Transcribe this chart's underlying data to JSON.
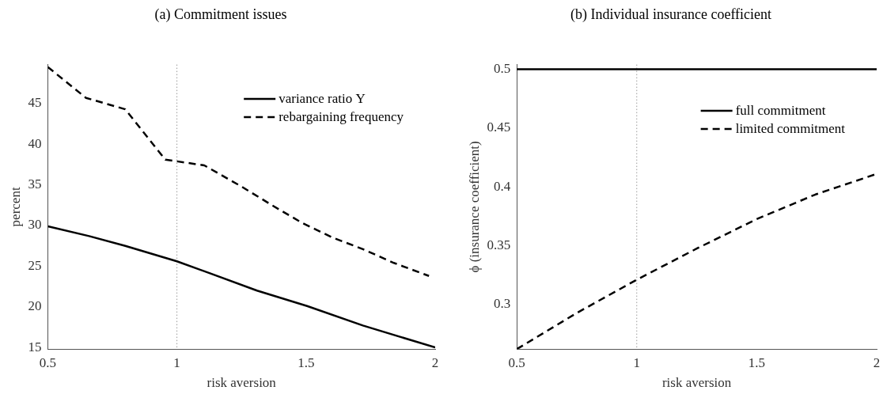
{
  "chart_data": [
    {
      "type": "line",
      "title": "(a) Commitment issues",
      "xlabel": "risk aversion",
      "ylabel": "percent",
      "xlim": [
        0.5,
        2
      ],
      "xticks": [
        0.5,
        1,
        1.5,
        2
      ],
      "ylim": [
        14.8,
        49.8
      ],
      "yticks": [
        15,
        20,
        25,
        30,
        35,
        40,
        45
      ],
      "grid": false,
      "legend": "top right",
      "marker": "none",
      "ref_lines": [
        {
          "axis": "x",
          "value": 1,
          "color": "#999999",
          "line_style": "dotted"
        }
      ],
      "series": [
        {
          "name": "variance ratio Υ",
          "color": "#000000",
          "line_style": "solid",
          "x": [
            0.5,
            0.66,
            0.8,
            1.0,
            1.13,
            1.31,
            1.504,
            1.72,
            2.0
          ],
          "values": [
            29.9,
            28.7,
            27.5,
            25.6,
            24.1,
            22.0,
            20.1,
            17.7,
            15.0
          ]
        },
        {
          "name": "rebargaining frequency",
          "color": "#000000",
          "line_style": "dashed",
          "x": [
            0.5,
            0.648,
            0.8,
            0.955,
            1.0,
            1.106,
            1.25,
            1.368,
            1.486,
            1.604,
            1.72,
            1.84,
            1.976
          ],
          "values": [
            49.5,
            45.7,
            44.3,
            38.1,
            37.9,
            37.4,
            34.8,
            32.5,
            30.3,
            28.5,
            27.1,
            25.4,
            23.8
          ]
        }
      ]
    },
    {
      "type": "line",
      "title": "(b) Individual insurance coefficient",
      "xlabel": "risk aversion",
      "ylabel": "ϕ (insurance coefficient)",
      "xlim": [
        0.5,
        2
      ],
      "xticks": [
        0.5,
        1,
        1.5,
        2
      ],
      "ylim": [
        0.262,
        0.504
      ],
      "yticks": [
        0.3,
        0.35,
        0.4,
        0.45,
        0.5
      ],
      "grid": false,
      "legend": "top right",
      "marker": "none",
      "ref_lines": [
        {
          "axis": "x",
          "value": 1,
          "color": "#999999",
          "line_style": "dotted"
        }
      ],
      "series": [
        {
          "name": "full commitment",
          "color": "#000000",
          "line_style": "solid",
          "x": [
            0.5,
            2.0
          ],
          "values": [
            0.5,
            0.5
          ]
        },
        {
          "name": "limited commitment",
          "color": "#000000",
          "line_style": "dashed",
          "x": [
            0.5,
            0.749,
            1.0,
            1.253,
            1.5,
            1.745,
            2.0
          ],
          "values": [
            0.262,
            0.2926,
            0.321,
            0.3478,
            0.3726,
            0.3935,
            0.411
          ]
        }
      ]
    }
  ]
}
